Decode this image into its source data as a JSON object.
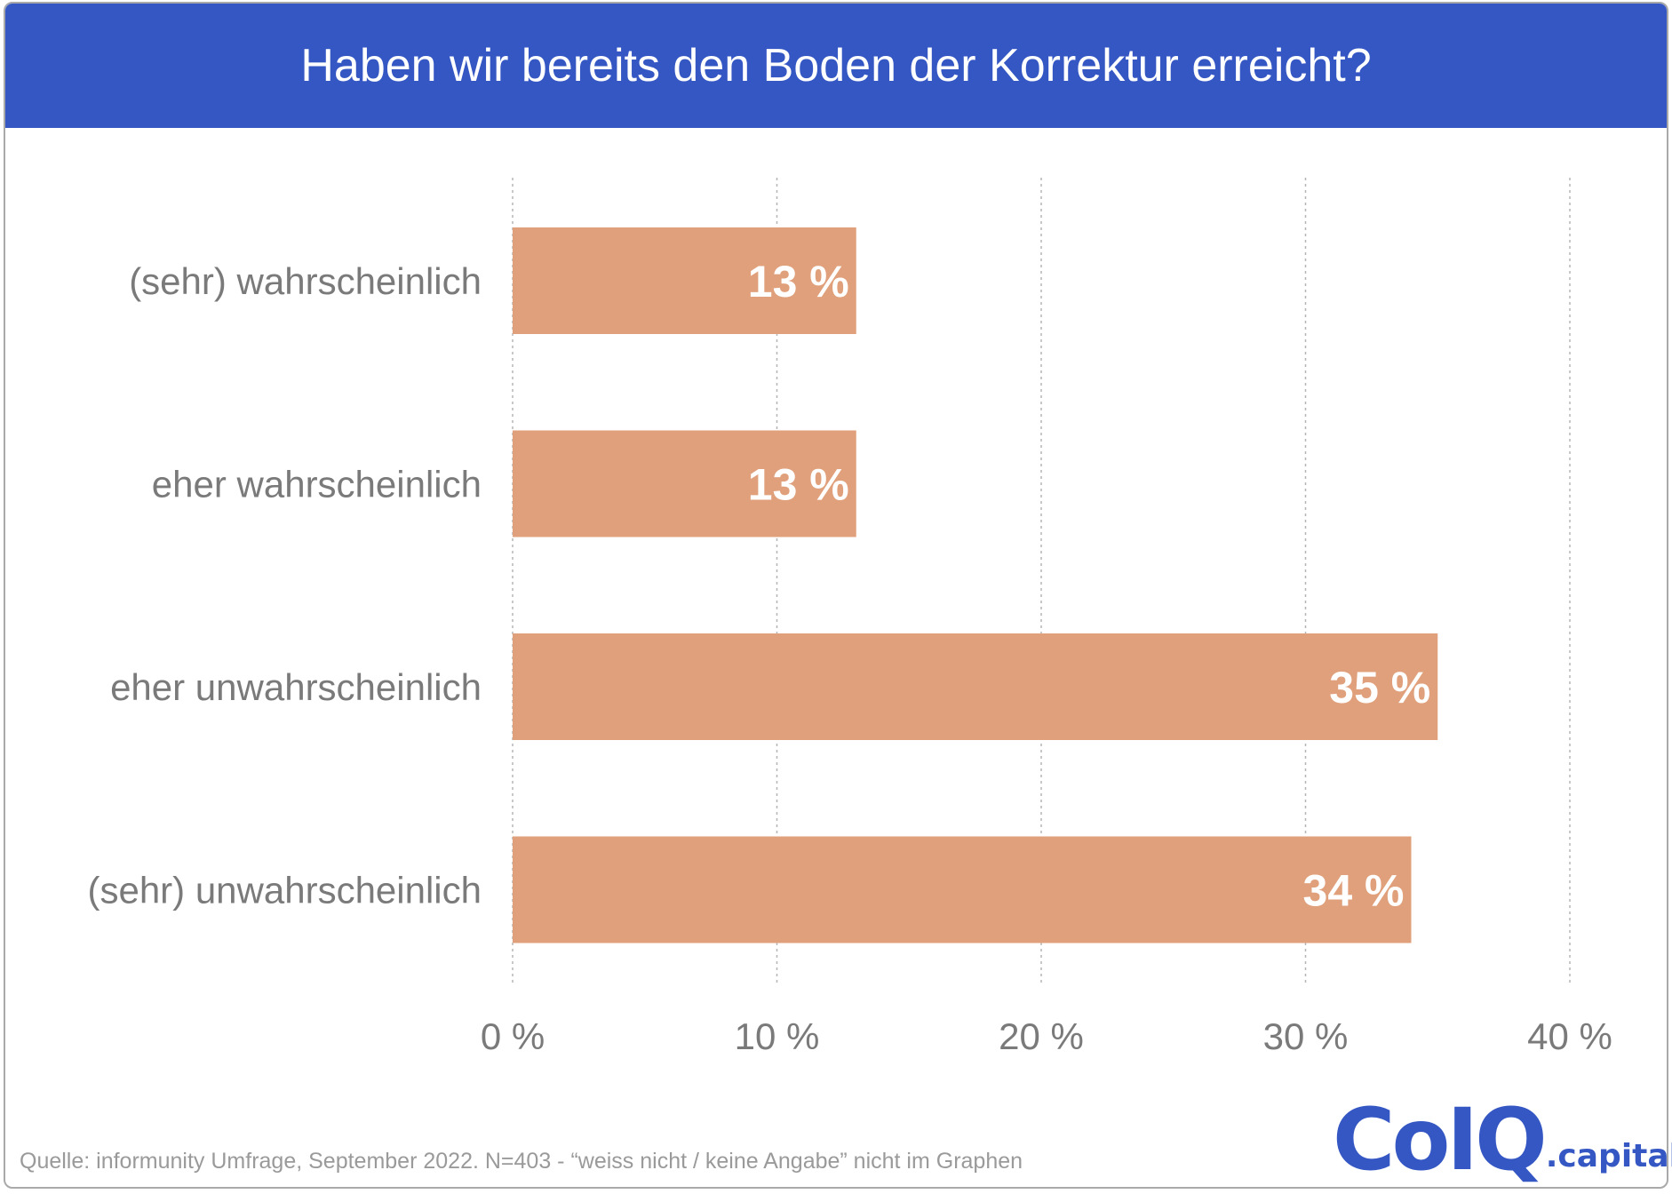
{
  "header": {
    "title": "Haben wir bereits den Boden der Korrektur erreicht?",
    "background": "#3557c4"
  },
  "chart_data": {
    "type": "bar",
    "orientation": "horizontal",
    "title": "Haben wir bereits den Boden der Korrektur erreicht?",
    "categories": [
      "(sehr) wahrscheinlich",
      "eher wahrscheinlich",
      "eher unwahrscheinlich",
      "(sehr) unwahrscheinlich"
    ],
    "values": [
      13,
      13,
      35,
      34
    ],
    "value_labels": [
      "13 %",
      "13 %",
      "35 %",
      "34 %"
    ],
    "xlim": [
      0,
      40
    ],
    "xticks": [
      0,
      10,
      20,
      30,
      40
    ],
    "xtick_labels": [
      "0 %",
      "10 %",
      "20 %",
      "30 %",
      "40 %"
    ],
    "xlabel": "",
    "ylabel": "",
    "grid": "vertical dotted",
    "bar_color": "#e0a07b",
    "label_color": "#ffffff",
    "text_color": "#7a7a7a"
  },
  "footer": {
    "source": "Quelle: informunity Umfrage, September 2022. N=403 - “weiss nicht / keine Angabe” nicht im Graphen"
  },
  "logo": {
    "main": "CoIQ",
    "suffix": ".capital",
    "color": "#3557c4"
  }
}
